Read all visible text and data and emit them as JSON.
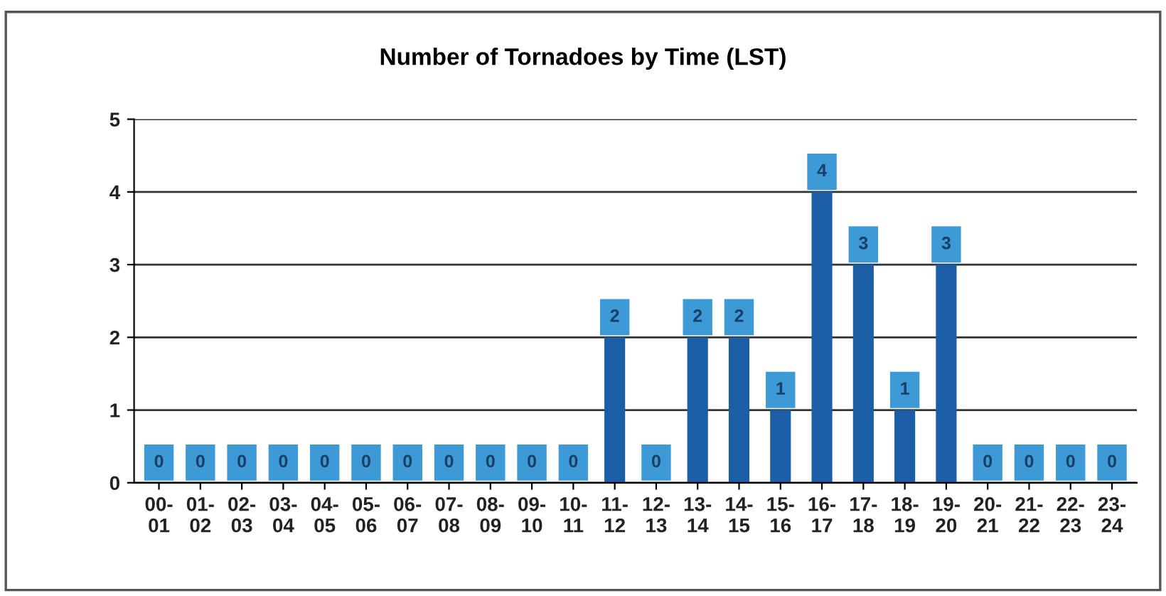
{
  "chart_data": {
    "type": "bar",
    "title": "Number of Tornadoes by Time (LST)",
    "categories": [
      "00-\n01",
      "01-\n02",
      "02-\n03",
      "03-\n04",
      "04-\n05",
      "05-\n06",
      "06-\n07",
      "07-\n08",
      "08-\n09",
      "09-\n10",
      "10-\n11",
      "11-\n12",
      "12-\n13",
      "13-\n14",
      "14-\n15",
      "15-\n16",
      "16-\n17",
      "17-\n18",
      "18-\n19",
      "19-\n20",
      "20-\n21",
      "21-\n22",
      "22-\n23",
      "23-\n24"
    ],
    "values": [
      0,
      0,
      0,
      0,
      0,
      0,
      0,
      0,
      0,
      0,
      0,
      2,
      0,
      2,
      2,
      1,
      4,
      3,
      1,
      3,
      0,
      0,
      0,
      0
    ],
    "color": "#1b5ea6",
    "ylim": [
      0,
      5
    ],
    "yticks": [
      0,
      1,
      2,
      3,
      4,
      5
    ],
    "grid": "y",
    "data_labels": true
  }
}
